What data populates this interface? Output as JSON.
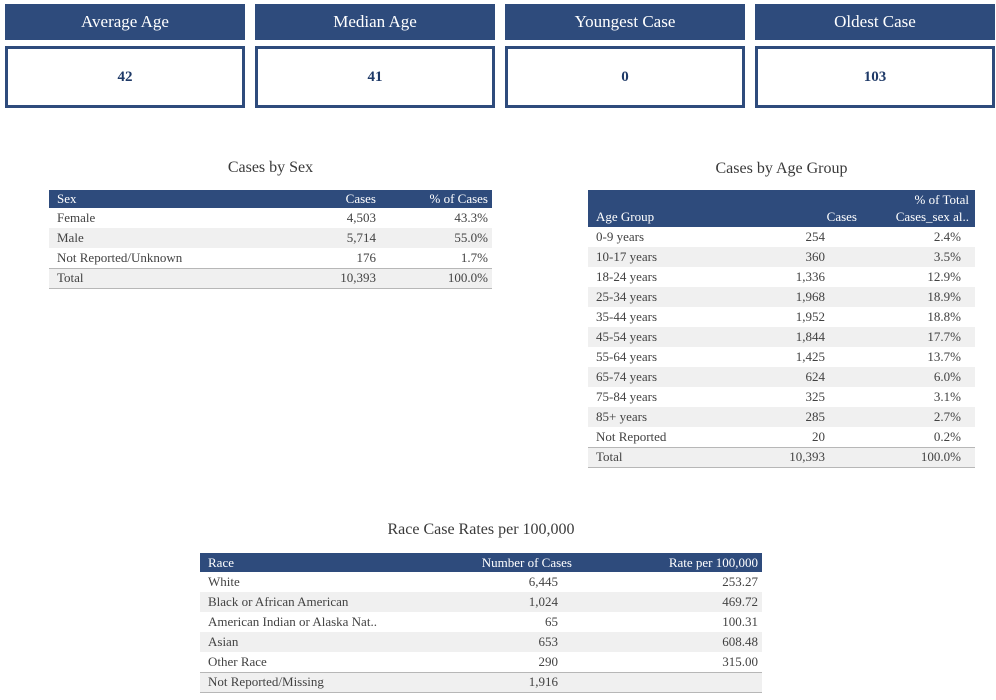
{
  "colors": {
    "header_blue": "#2e4b7c",
    "kpi_value_navy": "#1f3a68",
    "body_text": "#424242",
    "row_stripe": "#f0f0f0",
    "total_row_border": "#b7b7b7",
    "background": "#ffffff"
  },
  "kpis": [
    {
      "label": "Average Age",
      "value": "42"
    },
    {
      "label": "Median Age",
      "value": "41"
    },
    {
      "label": "Youngest Case",
      "value": "0"
    },
    {
      "label": "Oldest Case",
      "value": "103"
    }
  ],
  "chart_data": [
    {
      "type": "table",
      "title": "Cases by Sex",
      "columns": [
        "Sex",
        "Cases",
        "% of Cases"
      ],
      "rows": [
        [
          "Female",
          "4,503",
          "43.3%"
        ],
        [
          "Male",
          "5,714",
          "55.0%"
        ],
        [
          "Not Reported/Unknown",
          "176",
          "1.7%"
        ],
        [
          "Total",
          "10,393",
          "100.0%"
        ]
      ]
    },
    {
      "type": "table",
      "title": "Cases by Age Group",
      "columns": [
        "Age Group",
        "Cases",
        "% of Total\nCases_sex al.."
      ],
      "rows": [
        [
          "0-9 years",
          "254",
          "2.4%"
        ],
        [
          "10-17 years",
          "360",
          "3.5%"
        ],
        [
          "18-24 years",
          "1,336",
          "12.9%"
        ],
        [
          "25-34 years",
          "1,968",
          "18.9%"
        ],
        [
          "35-44 years",
          "1,952",
          "18.8%"
        ],
        [
          "45-54 years",
          "1,844",
          "17.7%"
        ],
        [
          "55-64 years",
          "1,425",
          "13.7%"
        ],
        [
          "65-74 years",
          "624",
          "6.0%"
        ],
        [
          "75-84 years",
          "325",
          "3.1%"
        ],
        [
          "85+ years",
          "285",
          "2.7%"
        ],
        [
          "Not Reported",
          "20",
          "0.2%"
        ],
        [
          "Total",
          "10,393",
          "100.0%"
        ]
      ]
    },
    {
      "type": "table",
      "title": "Race Case Rates per 100,000",
      "columns": [
        "Race",
        "Number of Cases",
        "Rate per 100,000"
      ],
      "rows": [
        [
          "White",
          "6,445",
          "253.27"
        ],
        [
          "Black or African American",
          "1,024",
          "469.72"
        ],
        [
          "American Indian or Alaska Nat..",
          "65",
          "100.31"
        ],
        [
          "Asian",
          "653",
          "608.48"
        ],
        [
          "Other Race",
          "290",
          "315.00"
        ],
        [
          "Not Reported/Missing",
          "1,916",
          ""
        ]
      ]
    }
  ]
}
